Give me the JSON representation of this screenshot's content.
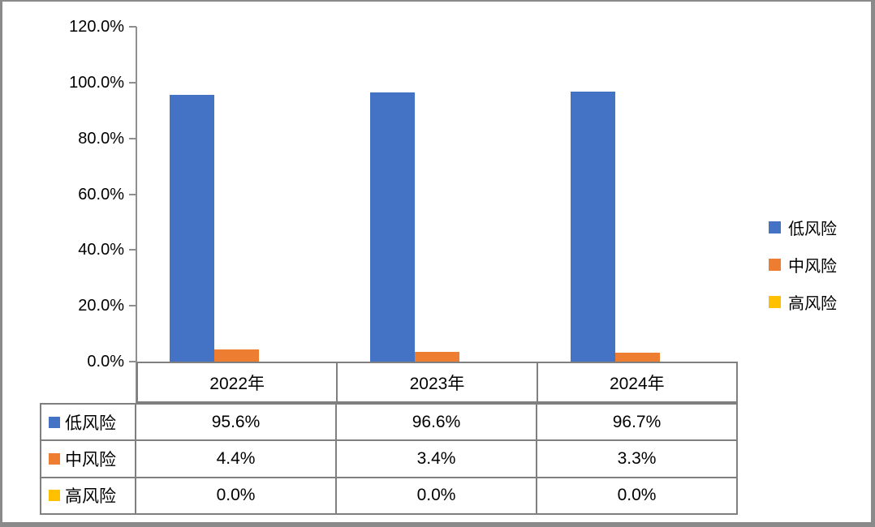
{
  "chart_data": {
    "type": "bar",
    "title": "",
    "xlabel": "",
    "ylabel": "",
    "categories": [
      "2022年",
      "2023年",
      "2024年"
    ],
    "category_keys": [
      "2022",
      "2023",
      "2024"
    ],
    "series": [
      {
        "key": "low-risk",
        "name": "低风险",
        "color": "#4472C4",
        "values": [
          95.6,
          96.6,
          96.7
        ]
      },
      {
        "key": "mid-risk",
        "name": "中风险",
        "color": "#ED7D31",
        "values": [
          4.4,
          3.4,
          3.3
        ]
      },
      {
        "key": "high-risk",
        "name": "高风险",
        "color": "#FFC000",
        "values": [
          0.0,
          0.0,
          0.0
        ]
      }
    ],
    "ylim": [
      0,
      120
    ],
    "ytick_step": 20,
    "ytick_labels": [
      "120.0%",
      "100.0%",
      "80.0%",
      "60.0%",
      "40.0%",
      "20.0%",
      "0.0%"
    ],
    "grid": false,
    "legend_position": "right",
    "value_format": "percent_one_decimal"
  },
  "legend": {
    "items": [
      {
        "key": "low-risk",
        "label": "低风险",
        "color": "#4472C4"
      },
      {
        "key": "mid-risk",
        "label": "中风险",
        "color": "#ED7D31"
      },
      {
        "key": "high-risk",
        "label": "高风险",
        "color": "#FFC000"
      }
    ]
  },
  "data_table": {
    "header_cells": [
      "2022年",
      "2023年",
      "2024年"
    ],
    "rows": [
      {
        "key": "low-risk",
        "label": "低风险",
        "color": "#4472C4",
        "values": [
          "95.6%",
          "96.6%",
          "96.7%"
        ]
      },
      {
        "key": "mid-risk",
        "label": "中风险",
        "color": "#ED7D31",
        "values": [
          "4.4%",
          "3.4%",
          "3.3%"
        ]
      },
      {
        "key": "high-risk",
        "label": "高风险",
        "color": "#FFC000",
        "values": [
          "0.0%",
          "0.0%",
          "0.0%"
        ]
      }
    ]
  },
  "colors": {
    "series_blue": "#4472C4",
    "series_orange": "#ED7D31",
    "series_yellow": "#FFC000",
    "axis_gray": "#8e8e8e",
    "table_border_gray": "#7f7f7f",
    "frame_gray": "#8a8a8a",
    "background": "#ffffff",
    "text": "#000000"
  }
}
